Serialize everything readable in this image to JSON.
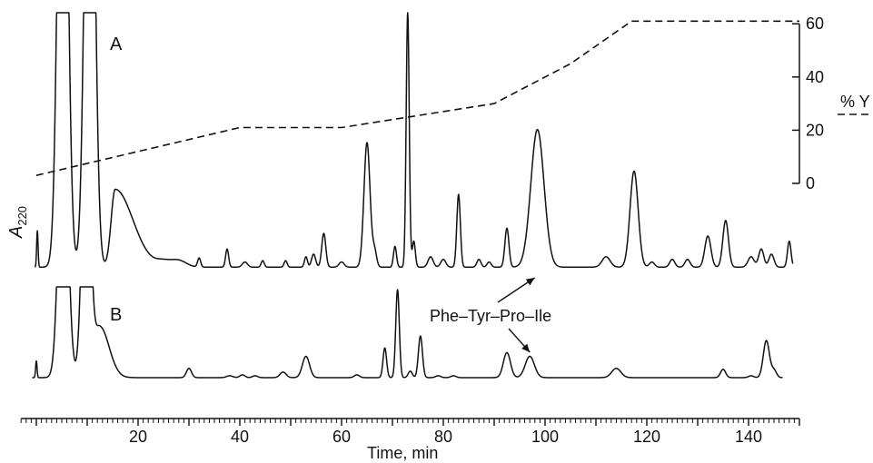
{
  "chart_data": {
    "type": "line",
    "title": "",
    "xlabel": "Time, min",
    "xlim": [
      -3,
      150
    ],
    "x_ticks": [
      20,
      40,
      60,
      80,
      100,
      120,
      140
    ],
    "y_left_label": "A",
    "y_left_label_sub": "220",
    "y_right_label": "% Y",
    "y_right_lim": [
      0,
      60
    ],
    "y_right_ticks": [
      0,
      20,
      40,
      60
    ],
    "annotation": "Phe–Tyr–Pro–Ile",
    "annotation_targets": [
      {
        "trace": "A",
        "x": 98.5
      },
      {
        "trace": "B",
        "x": 97
      }
    ],
    "gradient": {
      "name": "% Y",
      "x": [
        0,
        40,
        60,
        90,
        105,
        117,
        150
      ],
      "y": [
        3,
        21,
        21,
        30,
        45,
        61,
        61
      ]
    },
    "traces": [
      {
        "label": "A",
        "baseline_level": 0.02,
        "offscale_level": 1.0,
        "offscale_windows": [
          [
            4.8,
            5.8
          ],
          [
            10.0,
            11.0
          ]
        ],
        "peaks": [
          {
            "x": 0.2,
            "h": 0.14,
            "w": 0.14
          },
          {
            "x": 5.2,
            "h": 2.5,
            "w": 0.9
          },
          {
            "x": 10.5,
            "h": 2.5,
            "w": 0.9
          },
          {
            "x": 15.5,
            "h": 0.3,
            "w": 0.8,
            "tail": 3.5
          },
          {
            "x": 25,
            "h": 0.02,
            "w": 1.5
          },
          {
            "x": 28,
            "h": 0.025,
            "w": 1.5
          },
          {
            "x": 32,
            "h": 0.035,
            "w": 0.3
          },
          {
            "x": 37.5,
            "h": 0.07,
            "w": 0.3
          },
          {
            "x": 41,
            "h": 0.02,
            "w": 0.5
          },
          {
            "x": 44.5,
            "h": 0.025,
            "w": 0.3
          },
          {
            "x": 49,
            "h": 0.025,
            "w": 0.3
          },
          {
            "x": 53,
            "h": 0.04,
            "w": 0.3
          },
          {
            "x": 54.5,
            "h": 0.05,
            "w": 0.4
          },
          {
            "x": 56.5,
            "h": 0.13,
            "w": 0.4
          },
          {
            "x": 60,
            "h": 0.02,
            "w": 0.5
          },
          {
            "x": 65,
            "h": 0.48,
            "w": 0.6
          },
          {
            "x": 66.5,
            "h": 0.06,
            "w": 0.4
          },
          {
            "x": 70.5,
            "h": 0.08,
            "w": 0.3
          },
          {
            "x": 73,
            "h": 0.98,
            "w": 0.3
          },
          {
            "x": 74.2,
            "h": 0.1,
            "w": 0.3
          },
          {
            "x": 77.5,
            "h": 0.04,
            "w": 0.5
          },
          {
            "x": 80,
            "h": 0.03,
            "w": 0.5
          },
          {
            "x": 83,
            "h": 0.28,
            "w": 0.35
          },
          {
            "x": 87,
            "h": 0.03,
            "w": 0.4
          },
          {
            "x": 89,
            "h": 0.02,
            "w": 0.4
          },
          {
            "x": 92.5,
            "h": 0.15,
            "w": 0.4
          },
          {
            "x": 98.5,
            "h": 0.53,
            "w": 1.3
          },
          {
            "x": 112,
            "h": 0.04,
            "w": 0.8
          },
          {
            "x": 117.5,
            "h": 0.37,
            "w": 0.8
          },
          {
            "x": 121,
            "h": 0.02,
            "w": 0.5
          },
          {
            "x": 125,
            "h": 0.03,
            "w": 0.5
          },
          {
            "x": 128,
            "h": 0.03,
            "w": 0.5
          },
          {
            "x": 132,
            "h": 0.12,
            "w": 0.6
          },
          {
            "x": 135.5,
            "h": 0.18,
            "w": 0.55
          },
          {
            "x": 140.5,
            "h": 0.04,
            "w": 0.6
          },
          {
            "x": 142.5,
            "h": 0.07,
            "w": 0.5
          },
          {
            "x": 144.5,
            "h": 0.05,
            "w": 0.5
          },
          {
            "x": 148,
            "h": 0.1,
            "w": 0.35
          }
        ]
      },
      {
        "label": "B",
        "baseline_level": 0.02,
        "offscale_level": 1.0,
        "offscale_windows": [
          [
            4.8,
            6.0
          ],
          [
            9.4,
            10.4
          ]
        ],
        "peaks": [
          {
            "x": 0.0,
            "h": 0.18,
            "w": 0.14
          },
          {
            "x": 5.3,
            "h": 3.0,
            "w": 0.9
          },
          {
            "x": 9.8,
            "h": 3.0,
            "w": 0.8
          },
          {
            "x": 12.5,
            "h": 0.55,
            "w": 1.1,
            "tail": 1.8
          },
          {
            "x": 30,
            "h": 0.1,
            "w": 0.5
          },
          {
            "x": 38,
            "h": 0.02,
            "w": 0.6
          },
          {
            "x": 40.5,
            "h": 0.03,
            "w": 0.5
          },
          {
            "x": 43,
            "h": 0.02,
            "w": 0.5
          },
          {
            "x": 48.5,
            "h": 0.06,
            "w": 0.6
          },
          {
            "x": 53,
            "h": 0.23,
            "w": 0.7
          },
          {
            "x": 63,
            "h": 0.03,
            "w": 0.5
          },
          {
            "x": 68.5,
            "h": 0.32,
            "w": 0.35
          },
          {
            "x": 71,
            "h": 0.95,
            "w": 0.35
          },
          {
            "x": 73.5,
            "h": 0.07,
            "w": 0.4
          },
          {
            "x": 75.5,
            "h": 0.45,
            "w": 0.4
          },
          {
            "x": 79,
            "h": 0.02,
            "w": 0.5
          },
          {
            "x": 82,
            "h": 0.02,
            "w": 0.5
          },
          {
            "x": 92.5,
            "h": 0.27,
            "w": 0.7
          },
          {
            "x": 97,
            "h": 0.23,
            "w": 0.9
          },
          {
            "x": 114,
            "h": 0.1,
            "w": 0.9
          },
          {
            "x": 135,
            "h": 0.09,
            "w": 0.5
          },
          {
            "x": 140.5,
            "h": 0.02,
            "w": 0.5
          },
          {
            "x": 143.5,
            "h": 0.4,
            "w": 0.6
          },
          {
            "x": 145,
            "h": 0.08,
            "w": 0.5
          }
        ]
      }
    ]
  }
}
